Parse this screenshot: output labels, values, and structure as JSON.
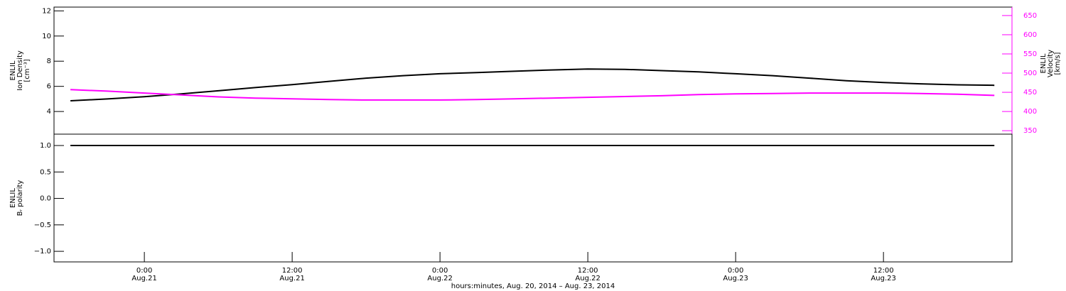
{
  "chart_data": [
    {
      "type": "line",
      "ylabel": [
        "ENLIL",
        "Ion Density",
        "[cm⁻³]"
      ],
      "y2label": [
        "ENLIL",
        "Velocity",
        "[km/s]"
      ],
      "y2color": "#ff00ff",
      "x": [
        "2014-08-20T18:00",
        "2014-08-20T21:00",
        "2014-08-21T00:00",
        "2014-08-21T03:00",
        "2014-08-21T06:00",
        "2014-08-21T09:00",
        "2014-08-21T12:00",
        "2014-08-21T15:00",
        "2014-08-21T18:00",
        "2014-08-21T21:00",
        "2014-08-22T00:00",
        "2014-08-22T03:00",
        "2014-08-22T06:00",
        "2014-08-22T09:00",
        "2014-08-22T12:00",
        "2014-08-22T15:00",
        "2014-08-22T18:00",
        "2014-08-22T21:00",
        "2014-08-23T00:00",
        "2014-08-23T03:00",
        "2014-08-23T06:00",
        "2014-08-23T09:00",
        "2014-08-23T12:00",
        "2014-08-23T15:00",
        "2014-08-23T18:00",
        "2014-08-23T21:00"
      ],
      "xlim": [
        "2014-08-20T16:40",
        "2014-08-23T22:26"
      ],
      "ylim": [
        2.2,
        12.3
      ],
      "yticks": [
        4,
        6,
        8,
        10,
        12
      ],
      "y2lim": [
        341,
        672
      ],
      "y2ticks": [
        350,
        400,
        450,
        500,
        550,
        600,
        650
      ],
      "series": [
        {
          "color": "#000000",
          "values": [
            4.85,
            5.0,
            5.18,
            5.4,
            5.65,
            5.9,
            6.14,
            6.4,
            6.65,
            6.85,
            7.0,
            7.1,
            7.2,
            7.3,
            7.38,
            7.35,
            7.25,
            7.15,
            7.0,
            6.85,
            6.65,
            6.45,
            6.3,
            6.2,
            6.12,
            6.08
          ]
        },
        {
          "color": "#ff00ff",
          "axis": "y2",
          "values": [
            457,
            453,
            448,
            443,
            438,
            435,
            433,
            431,
            430,
            430,
            430,
            431,
            433,
            435,
            437,
            439,
            441,
            444,
            446,
            447,
            448,
            448,
            448,
            447,
            445,
            442
          ]
        }
      ]
    },
    {
      "type": "line",
      "ylabel": [
        "ENLIL",
        "Bᵣ polarity"
      ],
      "x": [
        "2014-08-20T18:00",
        "2014-08-20T21:00",
        "2014-08-21T00:00",
        "2014-08-21T03:00",
        "2014-08-21T06:00",
        "2014-08-21T09:00",
        "2014-08-21T12:00",
        "2014-08-21T15:00",
        "2014-08-21T18:00",
        "2014-08-21T21:00",
        "2014-08-22T00:00",
        "2014-08-22T03:00",
        "2014-08-22T06:00",
        "2014-08-22T09:00",
        "2014-08-22T12:00",
        "2014-08-22T15:00",
        "2014-08-22T18:00",
        "2014-08-22T21:00",
        "2014-08-23T00:00",
        "2014-08-23T03:00",
        "2014-08-23T06:00",
        "2014-08-23T09:00",
        "2014-08-23T12:00",
        "2014-08-23T15:00",
        "2014-08-23T18:00",
        "2014-08-23T21:00"
      ],
      "xlim": [
        "2014-08-20T16:40",
        "2014-08-23T22:26"
      ],
      "xlabel": "hours:minutes, Aug. 20, 2014 – Aug. 23, 2014",
      "xticks": [
        {
          "value": "2014-08-21T00:00",
          "label": [
            "0:00",
            "Aug.21"
          ]
        },
        {
          "value": "2014-08-21T12:00",
          "label": [
            "12:00",
            "Aug.21"
          ]
        },
        {
          "value": "2014-08-22T00:00",
          "label": [
            "0:00",
            "Aug.22"
          ]
        },
        {
          "value": "2014-08-22T12:00",
          "label": [
            "12:00",
            "Aug.22"
          ]
        },
        {
          "value": "2014-08-23T00:00",
          "label": [
            "0:00",
            "Aug.23"
          ]
        },
        {
          "value": "2014-08-23T12:00",
          "label": [
            "12:00",
            "Aug.23"
          ]
        }
      ],
      "ylim": [
        -1.2,
        1.215
      ],
      "yticks": [
        {
          "value": -1,
          "label": "−1.0"
        },
        {
          "value": -0.5,
          "label": "−0.5"
        },
        {
          "value": 0,
          "label": "0.0"
        },
        {
          "value": 0.5,
          "label": "0.5"
        },
        {
          "value": 1,
          "label": "1.0"
        }
      ],
      "series": [
        {
          "color": "#000000",
          "values": [
            1,
            1,
            1,
            1,
            1,
            1,
            1,
            1,
            1,
            1,
            1,
            1,
            1,
            1,
            1,
            1,
            1,
            1,
            1,
            1,
            1,
            1,
            1,
            1,
            1,
            1
          ]
        }
      ]
    }
  ]
}
